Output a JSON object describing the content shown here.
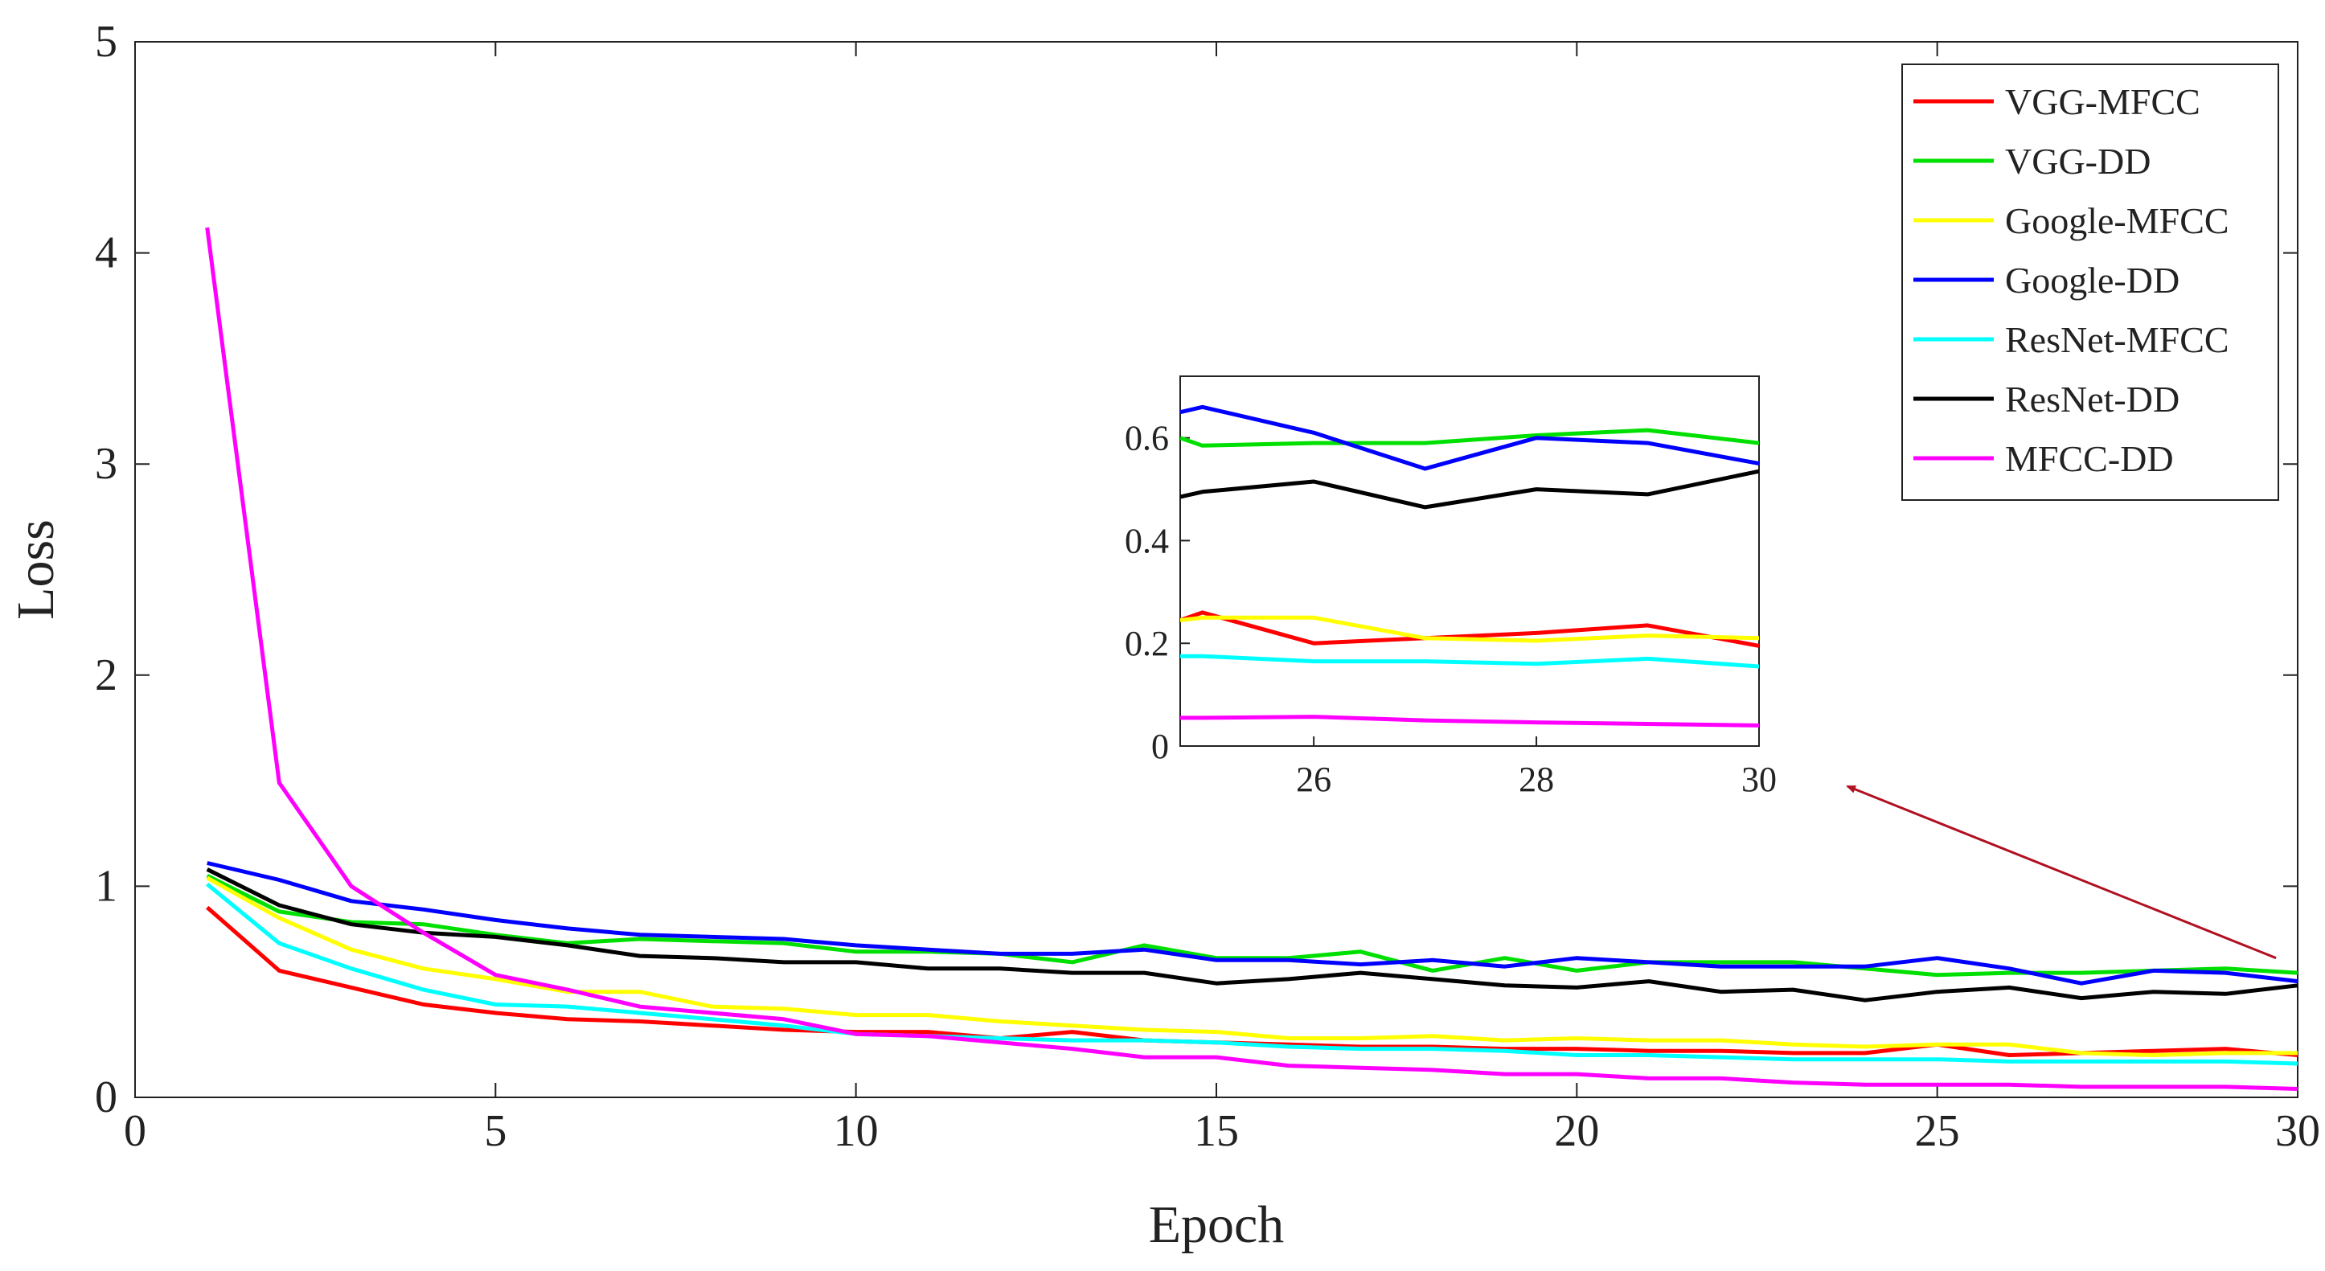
{
  "chart_data": [
    {
      "type": "line",
      "name": "main",
      "xlabel": "Epoch",
      "ylabel": "Loss",
      "xlim": [
        0,
        30
      ],
      "ylim": [
        0,
        5
      ],
      "xticks": [
        0,
        5,
        10,
        15,
        20,
        25,
        30
      ],
      "yticks": [
        0,
        1,
        2,
        3,
        4,
        5
      ],
      "xtick_labels": [
        "0",
        "5",
        "10",
        "15",
        "20",
        "25",
        "30"
      ],
      "ytick_labels": [
        "0",
        "1",
        "2",
        "3",
        "4",
        "5"
      ],
      "legend_position": "top-right",
      "x": [
        1,
        2,
        3,
        4,
        5,
        6,
        7,
        8,
        9,
        10,
        11,
        12,
        13,
        14,
        15,
        16,
        17,
        18,
        19,
        20,
        21,
        22,
        23,
        24,
        25,
        26,
        27,
        28,
        29,
        30
      ],
      "series": [
        {
          "name": "VGG-MFCC",
          "color": "#ff0000",
          "values": [
            0.9,
            0.6,
            0.52,
            0.44,
            0.4,
            0.37,
            0.36,
            0.34,
            0.32,
            0.31,
            0.31,
            0.28,
            0.31,
            0.27,
            0.26,
            0.25,
            0.24,
            0.24,
            0.23,
            0.23,
            0.22,
            0.22,
            0.21,
            0.21,
            0.25,
            0.2,
            0.21,
            0.22,
            0.23,
            0.2
          ]
        },
        {
          "name": "VGG-DD",
          "color": "#00e000",
          "values": [
            1.05,
            0.88,
            0.83,
            0.82,
            0.77,
            0.73,
            0.75,
            0.74,
            0.73,
            0.69,
            0.69,
            0.68,
            0.64,
            0.72,
            0.66,
            0.66,
            0.69,
            0.6,
            0.66,
            0.6,
            0.64,
            0.64,
            0.64,
            0.61,
            0.58,
            0.59,
            0.59,
            0.6,
            0.61,
            0.59
          ]
        },
        {
          "name": "Google-MFCC",
          "color": "#ffff00",
          "values": [
            1.04,
            0.85,
            0.7,
            0.61,
            0.56,
            0.5,
            0.5,
            0.43,
            0.42,
            0.39,
            0.39,
            0.36,
            0.34,
            0.32,
            0.31,
            0.28,
            0.28,
            0.29,
            0.27,
            0.28,
            0.27,
            0.27,
            0.25,
            0.24,
            0.25,
            0.25,
            0.21,
            0.2,
            0.21,
            0.21
          ]
        },
        {
          "name": "Google-DD",
          "color": "#0000ff",
          "values": [
            1.11,
            1.03,
            0.93,
            0.89,
            0.84,
            0.8,
            0.77,
            0.76,
            0.75,
            0.72,
            0.7,
            0.68,
            0.68,
            0.7,
            0.65,
            0.65,
            0.63,
            0.65,
            0.62,
            0.66,
            0.64,
            0.62,
            0.62,
            0.62,
            0.66,
            0.61,
            0.54,
            0.6,
            0.59,
            0.55
          ]
        },
        {
          "name": "ResNet-MFCC",
          "color": "#00ffff",
          "values": [
            1.01,
            0.73,
            0.61,
            0.51,
            0.44,
            0.43,
            0.4,
            0.37,
            0.34,
            0.3,
            0.29,
            0.28,
            0.27,
            0.27,
            0.26,
            0.24,
            0.23,
            0.23,
            0.22,
            0.2,
            0.2,
            0.19,
            0.18,
            0.18,
            0.18,
            0.17,
            0.17,
            0.17,
            0.17,
            0.16
          ]
        },
        {
          "name": "ResNet-DD",
          "color": "#000000",
          "values": [
            1.08,
            0.91,
            0.82,
            0.78,
            0.76,
            0.72,
            0.67,
            0.66,
            0.64,
            0.64,
            0.61,
            0.61,
            0.59,
            0.59,
            0.54,
            0.56,
            0.59,
            0.56,
            0.53,
            0.52,
            0.55,
            0.5,
            0.51,
            0.46,
            0.5,
            0.52,
            0.47,
            0.5,
            0.49,
            0.53
          ]
        },
        {
          "name": "MFCC-DD",
          "color": "#ff00ff",
          "values": [
            4.12,
            1.49,
            1.0,
            0.78,
            0.58,
            0.51,
            0.43,
            0.4,
            0.37,
            0.3,
            0.29,
            0.26,
            0.23,
            0.19,
            0.19,
            0.15,
            0.14,
            0.13,
            0.11,
            0.11,
            0.09,
            0.09,
            0.07,
            0.06,
            0.06,
            0.06,
            0.05,
            0.05,
            0.05,
            0.04
          ]
        }
      ]
    },
    {
      "type": "line",
      "name": "inset",
      "title": "",
      "xlim": [
        24.8,
        30
      ],
      "ylim": [
        0,
        0.72
      ],
      "xticks": [
        26,
        28,
        30
      ],
      "yticks": [
        0,
        0.2,
        0.4,
        0.6
      ],
      "xtick_labels": [
        "26",
        "28",
        "30"
      ],
      "ytick_labels": [
        "0",
        "0.2",
        "0.4",
        "0.6"
      ],
      "x": [
        24.8,
        25,
        26,
        27,
        28,
        29,
        30
      ],
      "series": [
        {
          "name": "VGG-MFCC",
          "color": "#ff0000",
          "values": [
            0.245,
            0.26,
            0.2,
            0.21,
            0.22,
            0.235,
            0.195
          ]
        },
        {
          "name": "VGG-DD",
          "color": "#00e000",
          "values": [
            0.6,
            0.585,
            0.59,
            0.59,
            0.605,
            0.615,
            0.59
          ]
        },
        {
          "name": "Google-MFCC",
          "color": "#ffff00",
          "values": [
            0.245,
            0.25,
            0.25,
            0.21,
            0.205,
            0.215,
            0.21
          ]
        },
        {
          "name": "Google-DD",
          "color": "#0000ff",
          "values": [
            0.65,
            0.66,
            0.61,
            0.54,
            0.6,
            0.59,
            0.55
          ]
        },
        {
          "name": "ResNet-MFCC",
          "color": "#00ffff",
          "values": [
            0.175,
            0.175,
            0.165,
            0.165,
            0.16,
            0.17,
            0.155
          ]
        },
        {
          "name": "ResNet-DD",
          "color": "#000000",
          "values": [
            0.485,
            0.495,
            0.515,
            0.465,
            0.5,
            0.49,
            0.535
          ]
        },
        {
          "name": "MFCC-DD",
          "color": "#ff00ff",
          "values": [
            0.055,
            0.055,
            0.057,
            0.05,
            0.046,
            0.043,
            0.04
          ]
        }
      ]
    }
  ],
  "annotation": {
    "type": "arrow",
    "from_point": [
      29.7,
      0.66
    ],
    "to_label": "inset",
    "color": "#b01020"
  }
}
